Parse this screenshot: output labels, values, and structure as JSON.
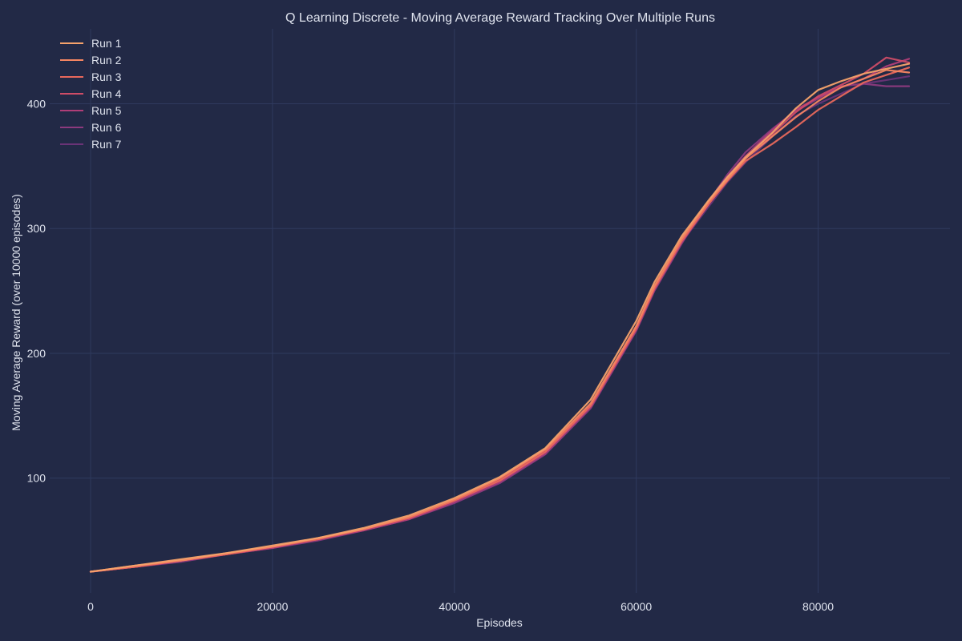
{
  "chart_data": {
    "type": "line",
    "title": "Q Learning Discrete - Moving Average Reward Tracking Over Multiple Runs",
    "xlabel": "Episodes",
    "ylabel": "Moving Average Reward (over 10000 episodes)",
    "xlim": [
      -4500,
      94500
    ],
    "ylim": [
      8,
      460
    ],
    "xticks": [
      0,
      20000,
      40000,
      60000,
      80000
    ],
    "yticks": [
      100,
      200,
      300,
      400
    ],
    "grid": true,
    "legend": {
      "position": "top-left"
    },
    "x": [
      0,
      5000,
      10000,
      15000,
      20000,
      25000,
      30000,
      35000,
      40000,
      45000,
      50000,
      55000,
      60000,
      62000,
      65000,
      68000,
      70000,
      72000,
      75000,
      77500,
      80000,
      82500,
      85000,
      87500,
      90000
    ],
    "series": [
      {
        "name": "Run 1",
        "color": "#f6a26b",
        "values": [
          25,
          30,
          35,
          40,
          46,
          52,
          60,
          70,
          84,
          101,
          124,
          163,
          226,
          257,
          294,
          323,
          341,
          357,
          377,
          396,
          411,
          418,
          424,
          428,
          432
        ]
      },
      {
        "name": "Run 2",
        "color": "#f58662",
        "values": [
          25,
          30,
          34,
          40,
          45,
          52,
          59,
          69,
          83,
          100,
          123,
          160,
          222,
          254,
          292,
          322,
          339,
          356,
          374,
          389,
          402,
          413,
          420,
          427,
          425
        ]
      },
      {
        "name": "Run 3",
        "color": "#e8685c",
        "values": [
          25,
          29,
          34,
          39,
          45,
          51,
          59,
          68,
          82,
          98,
          121,
          158,
          220,
          252,
          290,
          320,
          338,
          354,
          368,
          381,
          395,
          406,
          417,
          423,
          429
        ]
      },
      {
        "name": "Run 4",
        "color": "#cf4c67",
        "values": [
          25,
          29,
          34,
          39,
          45,
          51,
          59,
          68,
          82,
          99,
          122,
          159,
          221,
          253,
          291,
          321,
          340,
          356,
          376,
          393,
          406,
          415,
          424,
          437,
          433
        ]
      },
      {
        "name": "Run 5",
        "color": "#b03e78",
        "values": [
          25,
          29,
          34,
          39,
          44,
          51,
          58,
          67,
          81,
          97,
          120,
          157,
          219,
          251,
          289,
          320,
          341,
          358,
          379,
          395,
          405,
          413,
          420,
          430,
          436
        ]
      },
      {
        "name": "Run 6",
        "color": "#8c3a7e",
        "values": [
          25,
          29,
          33,
          39,
          44,
          50,
          58,
          67,
          80,
          96,
          119,
          156,
          218,
          250,
          288,
          322,
          343,
          361,
          380,
          394,
          404,
          414,
          416,
          414,
          414
        ]
      },
      {
        "name": "Run 7",
        "color": "#6a3377",
        "values": [
          25,
          29,
          34,
          39,
          45,
          51,
          59,
          68,
          82,
          98,
          121,
          158,
          221,
          252,
          289,
          318,
          337,
          353,
          374,
          390,
          400,
          408,
          416,
          419,
          422
        ]
      }
    ]
  }
}
